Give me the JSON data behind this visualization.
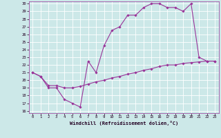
{
  "line1_x": [
    0,
    1,
    2,
    3,
    4,
    5,
    6,
    7,
    8,
    9,
    10,
    11,
    12,
    13,
    14,
    15,
    16,
    17,
    18,
    19,
    20,
    21,
    22,
    23
  ],
  "line1_y": [
    21.0,
    20.5,
    19.0,
    19.0,
    17.5,
    17.0,
    16.5,
    22.5,
    21.0,
    24.5,
    26.5,
    27.0,
    28.5,
    28.5,
    29.5,
    30.0,
    30.0,
    29.5,
    29.5,
    29.0,
    30.0,
    23.0,
    22.5,
    22.5
  ],
  "line2_x": [
    0,
    1,
    2,
    3,
    4,
    5,
    6,
    7,
    8,
    9,
    10,
    11,
    12,
    13,
    14,
    15,
    16,
    17,
    18,
    19,
    20,
    21,
    22,
    23
  ],
  "line2_y": [
    21.0,
    20.5,
    19.3,
    19.3,
    19.0,
    19.0,
    19.2,
    19.5,
    19.8,
    20.0,
    20.3,
    20.5,
    20.8,
    21.0,
    21.3,
    21.5,
    21.8,
    22.0,
    22.0,
    22.2,
    22.3,
    22.4,
    22.5,
    22.5
  ],
  "color": "#993399",
  "bg_color": "#cce8e8",
  "grid_color": "#b0d8d8",
  "xlabel": "Windchill (Refroidissement éolien,°C)",
  "xlim": [
    0,
    23
  ],
  "ylim": [
    16,
    30
  ],
  "yticks": [
    16,
    17,
    18,
    19,
    20,
    21,
    22,
    23,
    24,
    25,
    26,
    27,
    28,
    29,
    30
  ],
  "xticks": [
    0,
    1,
    2,
    3,
    4,
    5,
    6,
    7,
    8,
    9,
    10,
    11,
    12,
    13,
    14,
    15,
    16,
    17,
    18,
    19,
    20,
    21,
    22,
    23
  ],
  "marker": "D",
  "markersize": 1.8,
  "linewidth": 0.8,
  "tick_fontsize": 4.0,
  "xlabel_fontsize": 5.0
}
